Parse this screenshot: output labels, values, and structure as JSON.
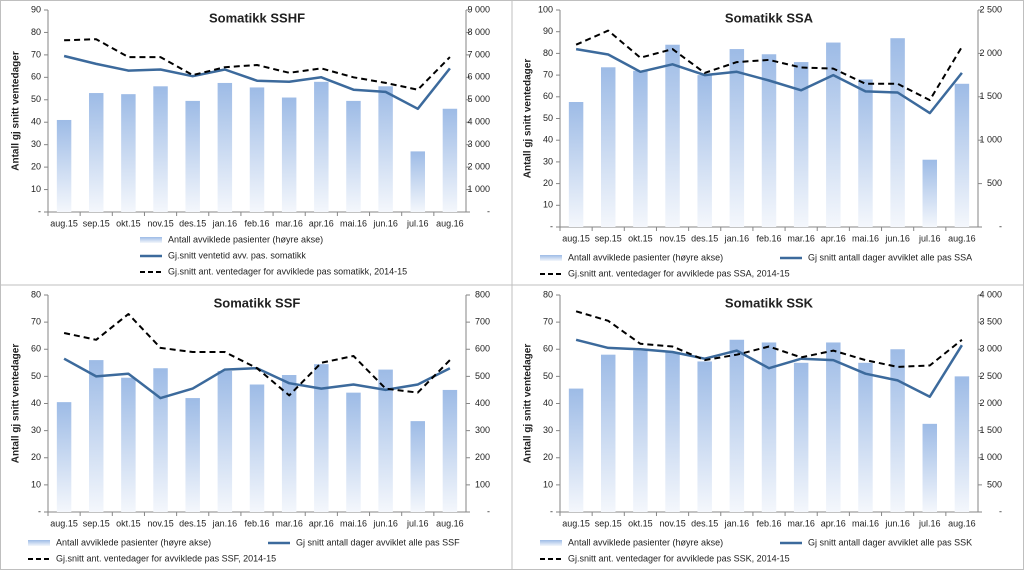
{
  "chart_data": [
    {
      "type": "combo",
      "title": "Somatikk SSHF",
      "ylabel": "Antall gj snitt ventedager",
      "categories": [
        "aug.15",
        "sep.15",
        "okt.15",
        "nov.15",
        "des.15",
        "jan.16",
        "feb.16",
        "mar.16",
        "apr.16",
        "mai.16",
        "jun.16",
        "jul.16",
        "aug.16"
      ],
      "ylim": [
        0,
        90
      ],
      "yticks": [
        {
          "value": 0,
          "label": "-"
        },
        10,
        20,
        30,
        40,
        50,
        60,
        70,
        80,
        90
      ],
      "y2lim": [
        0,
        9000
      ],
      "y2ticks": [
        {
          "value": 0,
          "label": "-"
        },
        {
          "value": 1000,
          "label": "1 000"
        },
        {
          "value": 2000,
          "label": "2 000"
        },
        {
          "value": 3000,
          "label": "3 000"
        },
        {
          "value": 4000,
          "label": "4 000"
        },
        {
          "value": 5000,
          "label": "5 000"
        },
        {
          "value": 6000,
          "label": "6 000"
        },
        {
          "value": 7000,
          "label": "7 000"
        },
        {
          "value": 8000,
          "label": "8 000"
        },
        {
          "value": 9000,
          "label": "9 000"
        }
      ],
      "series": [
        {
          "name": "Antall avviklede pasienter (høyre akse)",
          "type": "bar",
          "axis": "y2",
          "color": "#9dbbe6",
          "values": [
            4100,
            5300,
            5250,
            5600,
            4950,
            5750,
            5550,
            5100,
            5800,
            4950,
            5600,
            2700,
            4600
          ]
        },
        {
          "name": "Gj.snitt ventetid avv. pas. somatikk",
          "type": "line",
          "color": "#3c6a9c",
          "dashed": false,
          "values": [
            69.5,
            66,
            63,
            63.5,
            60.5,
            63.5,
            58.5,
            58,
            60,
            54.5,
            53.5,
            46,
            64
          ]
        },
        {
          "name": "Gj.snitt ant. ventedager for avviklede pas somatikk, 2014-15",
          "type": "line",
          "color": "#000000",
          "dashed": true,
          "values": [
            76.5,
            77,
            69,
            69,
            61,
            64.5,
            65.5,
            62,
            64,
            60,
            57.5,
            54.5,
            69
          ]
        }
      ]
    },
    {
      "type": "combo",
      "title": "Somatikk SSA",
      "ylabel": "Antall gj snitt ventedager",
      "categories": [
        "aug.15",
        "sep.15",
        "okt.15",
        "nov.15",
        "des.15",
        "jan.16",
        "feb.16",
        "mar.16",
        "apr.16",
        "mai.16",
        "jun.16",
        "jul.16",
        "aug.16"
      ],
      "ylim": [
        0,
        100
      ],
      "yticks": [
        {
          "value": 0,
          "label": "-"
        },
        10,
        20,
        30,
        40,
        50,
        60,
        70,
        80,
        90,
        100
      ],
      "y2lim": [
        0,
        2500
      ],
      "y2ticks": [
        {
          "value": 0,
          "label": "-"
        },
        500,
        {
          "value": 1000,
          "label": "1 000"
        },
        {
          "value": 1500,
          "label": "1 500"
        },
        {
          "value": 2000,
          "label": "2 000"
        },
        {
          "value": 2500,
          "label": "2 500"
        }
      ],
      "series": [
        {
          "name": "Antall avviklede pasienter (høyre akse)",
          "type": "bar",
          "axis": "y2",
          "color": "#9dbbe6",
          "values": [
            1440,
            1840,
            1800,
            2100,
            1750,
            2050,
            1990,
            1900,
            2125,
            1700,
            2175,
            775,
            1650
          ]
        },
        {
          "name": "Gj snitt antall dager avviklet alle pas SSA",
          "type": "line",
          "color": "#3c6a9c",
          "dashed": false,
          "values": [
            82,
            79.5,
            71.5,
            75,
            70,
            71.5,
            67.5,
            63,
            70,
            62.5,
            62,
            52.5,
            71
          ]
        },
        {
          "name": "Gj.snitt ant. ventedager for avviklede pas SSA, 2014-15",
          "type": "line",
          "color": "#000000",
          "dashed": true,
          "values": [
            84,
            90.5,
            78,
            82,
            71,
            76,
            77,
            73.5,
            73,
            66,
            66,
            58.5,
            83
          ]
        }
      ]
    },
    {
      "type": "combo",
      "title": "Somatikk SSF",
      "ylabel": "Antall gj snitt ventedager",
      "categories": [
        "aug.15",
        "sep.15",
        "okt.15",
        "nov.15",
        "des.15",
        "jan.16",
        "feb.16",
        "mar.16",
        "apr.16",
        "mai.16",
        "jun.16",
        "jul.16",
        "aug.16"
      ],
      "ylim": [
        0,
        80
      ],
      "yticks": [
        {
          "value": 0,
          "label": "-"
        },
        10,
        20,
        30,
        40,
        50,
        60,
        70,
        80
      ],
      "y2lim": [
        0,
        800
      ],
      "y2ticks": [
        {
          "value": 0,
          "label": "-"
        },
        100,
        200,
        300,
        400,
        500,
        600,
        700,
        800
      ],
      "series": [
        {
          "name": "Antall avviklede pasienter (høyre akse)",
          "type": "bar",
          "axis": "y2",
          "color": "#9dbbe6",
          "values": [
            405,
            560,
            495,
            530,
            420,
            520,
            470,
            505,
            545,
            440,
            525,
            335,
            450
          ]
        },
        {
          "name": "Gj snitt antall dager avviklet alle pas SSF",
          "type": "line",
          "color": "#3c6a9c",
          "dashed": false,
          "values": [
            56.5,
            50,
            51,
            42,
            45.5,
            52.5,
            53,
            47.5,
            45.5,
            47,
            45,
            47,
            53
          ]
        },
        {
          "name": "Gj.snitt ant. ventedager for avviklede pas SSF, 2014-15",
          "type": "line",
          "color": "#000000",
          "dashed": true,
          "values": [
            66,
            63.5,
            73,
            60.5,
            59,
            59,
            53,
            43,
            55,
            57.5,
            45.5,
            44,
            56
          ]
        }
      ]
    },
    {
      "type": "combo",
      "title": "Somatikk SSK",
      "ylabel": "Antall gj snitt ventedager",
      "categories": [
        "aug.15",
        "sep.15",
        "okt.15",
        "nov.15",
        "des.15",
        "jan.16",
        "feb.16",
        "mar.16",
        "apr.16",
        "mai.16",
        "jun.16",
        "jul.16",
        "aug.16"
      ],
      "ylim": [
        0,
        80
      ],
      "yticks": [
        {
          "value": 0,
          "label": "-"
        },
        10,
        20,
        30,
        40,
        50,
        60,
        70,
        80
      ],
      "y2lim": [
        0,
        4000
      ],
      "y2ticks": [
        {
          "value": 0,
          "label": "-"
        },
        500,
        {
          "value": 1000,
          "label": "1 000"
        },
        {
          "value": 1500,
          "label": "1 500"
        },
        {
          "value": 2000,
          "label": "2 000"
        },
        {
          "value": 2500,
          "label": "2 500"
        },
        {
          "value": 3000,
          "label": "3 000"
        },
        {
          "value": 3500,
          "label": "3 500"
        },
        {
          "value": 4000,
          "label": "4 000"
        }
      ],
      "series": [
        {
          "name": "Antall avviklede pasienter (høyre akse)",
          "type": "bar",
          "axis": "y2",
          "color": "#9dbbe6",
          "values": [
            2275,
            2900,
            2975,
            2950,
            2775,
            3175,
            3125,
            2750,
            3125,
            2750,
            3000,
            1625,
            2500
          ]
        },
        {
          "name": "Gj snitt antall dager avviklet alle pas SSK",
          "type": "line",
          "color": "#3c6a9c",
          "dashed": false,
          "values": [
            63.5,
            60.5,
            60,
            59,
            56.5,
            59.5,
            53,
            56.5,
            56,
            51,
            48.5,
            42.5,
            61.5
          ]
        },
        {
          "name": "Gj.snitt ant. ventedager for avviklede pas SSK, 2014-15",
          "type": "line",
          "color": "#000000",
          "dashed": true,
          "values": [
            74,
            70.5,
            62,
            61,
            56,
            58,
            61,
            57,
            59.5,
            56,
            53.5,
            54,
            63.5
          ]
        }
      ]
    }
  ]
}
